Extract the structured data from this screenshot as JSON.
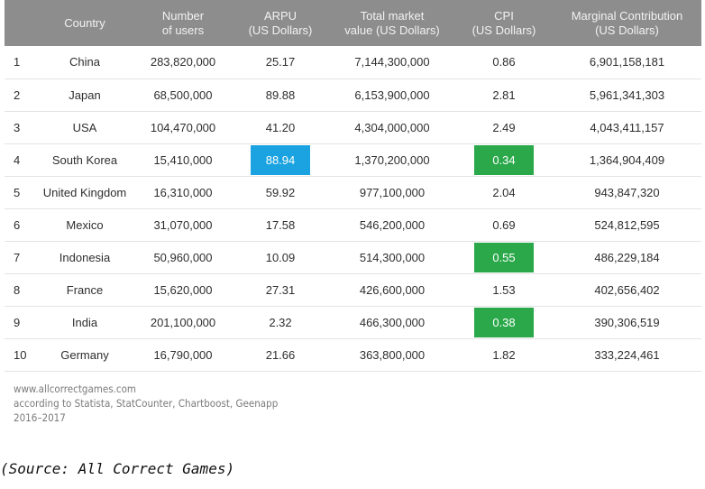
{
  "table": {
    "headers": [
      {
        "line1": "",
        "line2": ""
      },
      {
        "line1": "Country",
        "line2": ""
      },
      {
        "line1": "Number",
        "line2": "of users"
      },
      {
        "line1": "ARPU",
        "line2": "(US Dollars)"
      },
      {
        "line1": "Total market",
        "line2": "value (US Dollars)"
      },
      {
        "line1": "CPI",
        "line2": "(US Dollars)"
      },
      {
        "line1": "Marginal Contribution",
        "line2": "(US Dollars)"
      }
    ],
    "rows": [
      {
        "rank": "1",
        "country": "China",
        "users": "283,820,000",
        "arpu": "25.17",
        "market": "7,144,300,000",
        "cpi": "0.86",
        "margin": "6,901,158,181"
      },
      {
        "rank": "2",
        "country": "Japan",
        "users": "68,500,000",
        "arpu": "89.88",
        "market": "6,153,900,000",
        "cpi": "2.81",
        "margin": "5,961,341,303"
      },
      {
        "rank": "3",
        "country": "USA",
        "users": "104,470,000",
        "arpu": "41.20",
        "market": "4,304,000,000",
        "cpi": "2.49",
        "margin": "4,043,411,157"
      },
      {
        "rank": "4",
        "country": "South Korea",
        "users": "15,410,000",
        "arpu": "88.94",
        "market": "1,370,200,000",
        "cpi": "0.34",
        "margin": "1,364,904,409"
      },
      {
        "rank": "5",
        "country": "United Kingdom",
        "users": "16,310,000",
        "arpu": "59.92",
        "market": "977,100,000",
        "cpi": "2.04",
        "margin": "943,847,320"
      },
      {
        "rank": "6",
        "country": "Mexico",
        "users": "31,070,000",
        "arpu": "17.58",
        "market": "546,200,000",
        "cpi": "0.69",
        "margin": "524,812,595"
      },
      {
        "rank": "7",
        "country": "Indonesia",
        "users": "50,960,000",
        "arpu": "10.09",
        "market": "514,300,000",
        "cpi": "0.55",
        "margin": "486,229,184"
      },
      {
        "rank": "8",
        "country": "France",
        "users": "15,620,000",
        "arpu": "27.31",
        "market": "426,600,000",
        "cpi": "1.53",
        "margin": "402,656,402"
      },
      {
        "rank": "9",
        "country": "India",
        "users": "201,100,000",
        "arpu": "2.32",
        "market": "466,300,000",
        "cpi": "0.38",
        "margin": "390,306,519"
      },
      {
        "rank": "10",
        "country": "Germany",
        "users": "16,790,000",
        "arpu": "21.66",
        "market": "363,800,000",
        "cpi": "1.82",
        "margin": "333,224,461"
      }
    ],
    "highlights": {
      "arpu_rows": [
        3
      ],
      "cpi_rows": [
        3,
        6,
        8
      ]
    }
  },
  "footer": {
    "line1": "www.allcorrectgames.com",
    "line2": "according to Statista, StatCounter, Chartboost, Geenapp",
    "line3": "2016–2017"
  },
  "caption": "(Source: All Correct Games)",
  "colors": {
    "header_bg": "#8d8d8d",
    "header_text": "#f2f2f2",
    "highlight_blue": "#1aa3e0",
    "highlight_green": "#2aa84a",
    "highlight_text": "#ffffff"
  }
}
